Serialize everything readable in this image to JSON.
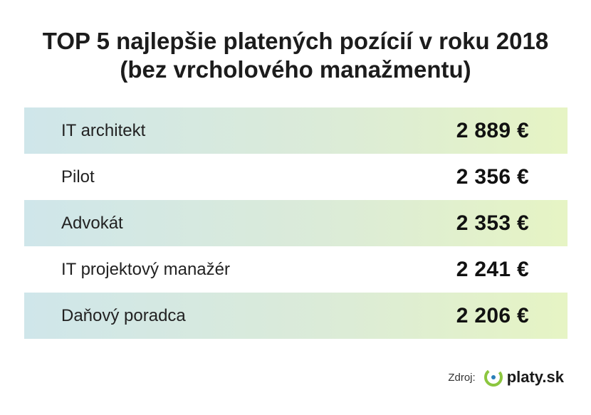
{
  "title": {
    "line1": "TOP 5 najlepšie platených pozícií v roku 2018",
    "line2": "(bez vrcholového manažmentu)"
  },
  "chart_data": {
    "type": "table",
    "title": "TOP 5 najlepšie platených pozícií v roku 2018 (bez vrcholového manažmentu)",
    "rows": [
      {
        "label": "IT architekt",
        "value": 2889,
        "display": "2 889 €"
      },
      {
        "label": "Pilot",
        "value": 2356,
        "display": "2 356 €"
      },
      {
        "label": "Advokát",
        "value": 2353,
        "display": "2 353 €"
      },
      {
        "label": "IT projektový manažér",
        "value": 2241,
        "display": "2 241 €"
      },
      {
        "label": "Daňový poradca",
        "value": 2206,
        "display": "2 206 €"
      }
    ]
  },
  "source": {
    "label": "Zdroj:",
    "logo_text": "platy.sk",
    "logo_icon": "platy-logo-icon"
  },
  "colors": {
    "row_gradient_start": "#cfe6ea",
    "row_gradient_end": "#e6f4c4",
    "logo_green": "#8cc63f",
    "logo_blue": "#2a7fb8"
  }
}
